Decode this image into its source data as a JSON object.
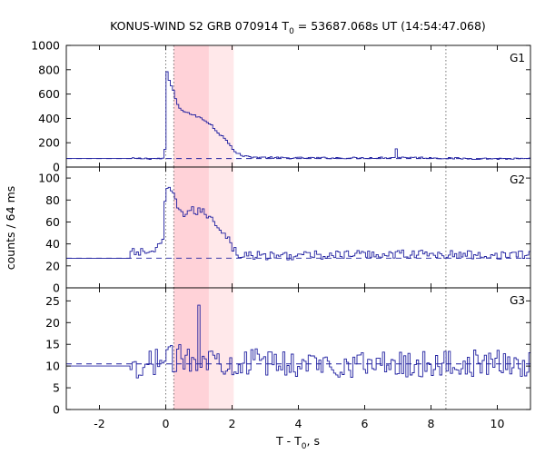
{
  "title": {
    "prefix": "KONUS-WIND S2 GRB 070914 T",
    "sub": "0",
    "suffix": " = 53687.068s UT (14:54:47.068)"
  },
  "ylabel": "counts / 64 ms",
  "xlabel": {
    "prefix": "T - T",
    "sub": "0",
    "suffix": ", s"
  },
  "chart_data": {
    "type": "line",
    "style": "step histogram (3 stacked panels sharing the x axis)",
    "xlim": [
      -3,
      11
    ],
    "x_ticks": [
      -2,
      0,
      2,
      4,
      6,
      8,
      10
    ],
    "x_tick_labels": [
      "-2",
      "0",
      "2",
      "4",
      "6",
      "8",
      "10"
    ],
    "bin_width_s": 0.064,
    "shaded_intervals": [
      {
        "name": "interval-1",
        "from": 0.24,
        "to": 1.3,
        "color": "#ffd2d8"
      },
      {
        "name": "interval-2",
        "from": 1.3,
        "to": 2.05,
        "color": "#ffe8ea"
      }
    ],
    "vertical_markers": [
      0.0,
      0.24,
      8.45
    ],
    "line_color": "#2020a0",
    "background_color": "#2020a0",
    "panels": [
      {
        "name": "G1",
        "ylim": [
          0,
          1000
        ],
        "y_ticks": [
          0,
          200,
          400,
          600,
          800,
          1000
        ],
        "y_tick_labels": [
          "0",
          "200",
          "400",
          "600",
          "800",
          "1000"
        ],
        "background": 70,
        "noise": 7,
        "spike": {
          "x": 6.98,
          "value": 150
        },
        "profile": [
          [
            -3.0,
            70
          ],
          [
            -0.1,
            70
          ],
          [
            -0.06,
            75
          ],
          [
            -0.05,
            130
          ],
          [
            -0.03,
            135
          ],
          [
            -0.02,
            145
          ],
          [
            0.0,
            790
          ],
          [
            0.06,
            780
          ],
          [
            0.12,
            680
          ],
          [
            0.2,
            660
          ],
          [
            0.3,
            560
          ],
          [
            0.4,
            480
          ],
          [
            0.6,
            455
          ],
          [
            0.8,
            430
          ],
          [
            1.0,
            410
          ],
          [
            1.2,
            380
          ],
          [
            1.4,
            345
          ],
          [
            1.5,
            300
          ],
          [
            1.6,
            270
          ],
          [
            1.7,
            260
          ],
          [
            1.8,
            235
          ],
          [
            1.95,
            180
          ],
          [
            2.1,
            120
          ],
          [
            2.3,
            95
          ],
          [
            2.6,
            82
          ],
          [
            3.5,
            75
          ],
          [
            5.0,
            75
          ],
          [
            6.0,
            75
          ],
          [
            7.2,
            80
          ],
          [
            8.0,
            75
          ],
          [
            9.0,
            70
          ],
          [
            11.0,
            68
          ]
        ]
      },
      {
        "name": "G2",
        "ylim": [
          0,
          110
        ],
        "y_ticks": [
          0,
          20,
          40,
          60,
          80,
          100
        ],
        "y_tick_labels": [
          "0",
          "20",
          "40",
          "60",
          "80",
          "100"
        ],
        "background": 27,
        "noise": 4,
        "profile": [
          [
            -3.0,
            27
          ],
          [
            -1.1,
            27
          ],
          [
            -1.05,
            32
          ],
          [
            -0.5,
            33
          ],
          [
            -0.3,
            35
          ],
          [
            -0.1,
            38
          ],
          [
            0.0,
            90
          ],
          [
            0.2,
            86
          ],
          [
            0.4,
            72
          ],
          [
            0.6,
            67
          ],
          [
            0.8,
            70
          ],
          [
            1.0,
            70
          ],
          [
            1.3,
            66
          ],
          [
            1.5,
            60
          ],
          [
            1.7,
            52
          ],
          [
            1.9,
            45
          ],
          [
            2.05,
            35
          ],
          [
            2.2,
            30
          ],
          [
            3.0,
            29
          ],
          [
            5.0,
            30
          ],
          [
            7.0,
            31
          ],
          [
            9.0,
            30
          ],
          [
            11.0,
            30
          ]
        ]
      },
      {
        "name": "G3",
        "ylim": [
          0,
          28
        ],
        "y_ticks": [
          0,
          5,
          10,
          15,
          20,
          25
        ],
        "y_tick_labels": [
          "0",
          "5",
          "10",
          "15",
          "20",
          "25"
        ],
        "background": 10.5,
        "noise": 3.2,
        "spike": {
          "x": 0.99,
          "value": 24
        },
        "profile": [
          [
            -3.0,
            10
          ],
          [
            -1.1,
            10
          ],
          [
            -1.05,
            8
          ],
          [
            -0.6,
            8
          ],
          [
            -0.5,
            11
          ],
          [
            0.0,
            11.5
          ],
          [
            1.0,
            12
          ],
          [
            2.0,
            11
          ],
          [
            4.0,
            10.5
          ],
          [
            8.0,
            10.5
          ],
          [
            11.0,
            10.5
          ]
        ]
      }
    ]
  }
}
